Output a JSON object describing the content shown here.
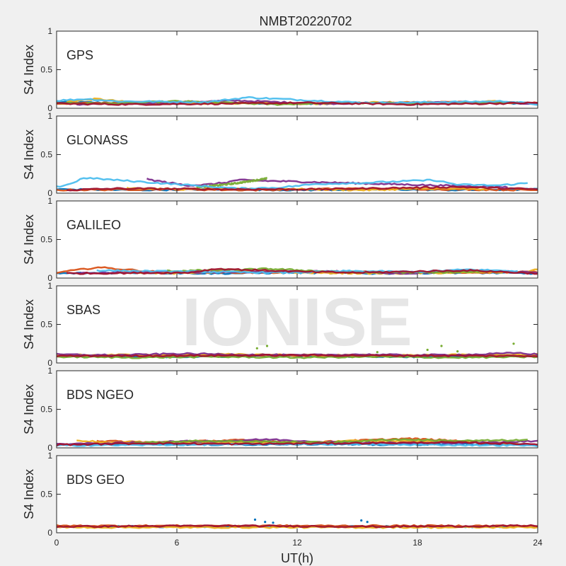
{
  "chart_data": {
    "type": "scatter",
    "title": "NMBT20220702",
    "xlabel": "UT(h)",
    "ylabel": "S4 Index",
    "xlim": [
      0,
      24
    ],
    "ylim": [
      0,
      1
    ],
    "x_ticks": [
      "0",
      "6",
      "12",
      "18",
      "24"
    ],
    "y_ticks": [
      "0",
      "0.5",
      "1"
    ],
    "grid": false,
    "watermark": "IONISE",
    "series_colors": [
      "#0072BD",
      "#D95319",
      "#EDB120",
      "#7E2F8E",
      "#77AC30",
      "#4DBEEE",
      "#A2142F"
    ],
    "panels": [
      {
        "name": "GPS",
        "tracks": [
          {
            "c": 0,
            "x": [
              0.0,
              3.0,
              6.0,
              9.0,
              12.0,
              15.0,
              18.0,
              21.0,
              24.0
            ],
            "y": [
              0.08,
              0.07,
              0.06,
              0.07,
              0.06,
              0.07,
              0.06,
              0.07,
              0.06
            ]
          },
          {
            "c": 1,
            "x": [
              0.0,
              4.0,
              8.0,
              12.0,
              16.0,
              20.0,
              24.0
            ],
            "y": [
              0.06,
              0.08,
              0.07,
              0.06,
              0.07,
              0.08,
              0.07
            ]
          },
          {
            "c": 2,
            "x": [
              0.5,
              2.0,
              3.5,
              7.0,
              10.0,
              13.0,
              16.5,
              19.0,
              22.0
            ],
            "y": [
              0.09,
              0.12,
              0.08,
              0.06,
              0.07,
              0.06,
              0.08,
              0.07,
              0.09
            ]
          },
          {
            "c": 3,
            "x": [
              1.0,
              5.0,
              9.0,
              13.0,
              17.0,
              21.0,
              24.0
            ],
            "y": [
              0.05,
              0.07,
              0.1,
              0.06,
              0.07,
              0.08,
              0.06
            ]
          },
          {
            "c": 4,
            "x": [
              0.0,
              2.5,
              6.0,
              11.0,
              14.0,
              18.5,
              23.0
            ],
            "y": [
              0.07,
              0.06,
              0.09,
              0.05,
              0.07,
              0.06,
              0.08
            ]
          },
          {
            "c": 5,
            "x": [
              0.0,
              1.5,
              3.0,
              7.5,
              9.5,
              14.5,
              16.0,
              22.5,
              24.0
            ],
            "y": [
              0.1,
              0.12,
              0.09,
              0.08,
              0.14,
              0.08,
              0.07,
              0.09,
              0.05
            ]
          },
          {
            "c": 6,
            "x": [
              0.0,
              3.5,
              8.5,
              12.5,
              17.5,
              21.5,
              24.0
            ],
            "y": [
              0.06,
              0.05,
              0.06,
              0.07,
              0.05,
              0.06,
              0.07
            ]
          }
        ]
      },
      {
        "name": "GLONASS",
        "tracks": [
          {
            "c": 0,
            "x": [
              0.0,
              4.0,
              8.0,
              12.0,
              16.0,
              20.0,
              24.0
            ],
            "y": [
              0.05,
              0.04,
              0.05,
              0.04,
              0.05,
              0.04,
              0.05
            ]
          },
          {
            "c": 1,
            "x": [
              0.0,
              5.0,
              10.0,
              14.5,
              19.5,
              24.0
            ],
            "y": [
              0.04,
              0.05,
              0.04,
              0.06,
              0.05,
              0.04
            ]
          },
          {
            "c": 2,
            "x": [
              3.5,
              6.0,
              9.5,
              12.5,
              15.5,
              18.5,
              21.5
            ],
            "y": [
              0.07,
              0.05,
              0.06,
              0.05,
              0.04,
              0.06,
              0.05
            ]
          },
          {
            "c": 3,
            "x": [
              4.5,
              5.5,
              6.5,
              7.5,
              8.5,
              9.0,
              20.5,
              22.5
            ],
            "y": [
              0.18,
              0.14,
              0.1,
              0.11,
              0.14,
              0.17,
              0.09,
              0.08
            ]
          },
          {
            "c": 4,
            "x": [
              7.0,
              8.0,
              9.0,
              10.0,
              10.5
            ],
            "y": [
              0.08,
              0.1,
              0.13,
              0.17,
              0.19
            ]
          },
          {
            "c": 5,
            "x": [
              0.0,
              0.5,
              1.0,
              1.3,
              9.0,
              11.0,
              13.0,
              15.0,
              18.8,
              20.0,
              22.0,
              23.5
            ],
            "y": [
              0.08,
              0.11,
              0.15,
              0.2,
              0.06,
              0.07,
              0.12,
              0.13,
              0.17,
              0.11,
              0.1,
              0.13
            ]
          },
          {
            "c": 6,
            "x": [
              0.5,
              3.0,
              9.5,
              13.0,
              20.0,
              24.0
            ],
            "y": [
              0.04,
              0.06,
              0.05,
              0.05,
              0.08,
              0.05
            ]
          }
        ]
      },
      {
        "name": "GALILEO",
        "tracks": [
          {
            "c": 0,
            "x": [
              0.0,
              4.0,
              8.0,
              12.0,
              16.0,
              20.0,
              24.0
            ],
            "y": [
              0.06,
              0.07,
              0.06,
              0.07,
              0.06,
              0.07,
              0.06
            ]
          },
          {
            "c": 1,
            "x": [
              0.0,
              1.5,
              2.0,
              5.0,
              10.0,
              15.0,
              20.0,
              24.0
            ],
            "y": [
              0.07,
              0.12,
              0.14,
              0.08,
              0.07,
              0.08,
              0.07,
              0.08
            ]
          },
          {
            "c": 2,
            "x": [
              3.0,
              6.0,
              9.0,
              12.0,
              16.5,
              23.5,
              24.0
            ],
            "y": [
              0.08,
              0.06,
              0.09,
              0.07,
              0.06,
              0.08,
              0.12
            ]
          },
          {
            "c": 3,
            "x": [
              1.0,
              4.5,
              8.5,
              13.5,
              17.5,
              21.0,
              24.0
            ],
            "y": [
              0.06,
              0.08,
              0.07,
              0.09,
              0.06,
              0.1,
              0.07
            ]
          },
          {
            "c": 4,
            "x": [
              5.5,
              7.5,
              9.5,
              10.5,
              14.0,
              19.0,
              22.0
            ],
            "y": [
              0.09,
              0.1,
              0.11,
              0.12,
              0.08,
              0.07,
              0.09
            ]
          },
          {
            "c": 5,
            "x": [
              2.0,
              4.0,
              11.5,
              14.5,
              18.0,
              20.5,
              23.0
            ],
            "y": [
              0.1,
              0.09,
              0.07,
              0.09,
              0.08,
              0.11,
              0.09
            ]
          },
          {
            "c": 6,
            "x": [
              0.5,
              6.5,
              8.0,
              12.5,
              15.0,
              20.5,
              24.0
            ],
            "y": [
              0.06,
              0.07,
              0.12,
              0.08,
              0.07,
              0.1,
              0.06
            ]
          }
        ]
      },
      {
        "name": "SBAS",
        "tracks": [
          {
            "c": 0,
            "x": [
              0.0,
              6.0,
              12.0,
              18.0,
              24.0
            ],
            "y": [
              0.09,
              0.08,
              0.09,
              0.08,
              0.09
            ]
          },
          {
            "c": 1,
            "x": [
              0.0,
              5.0,
              10.0,
              15.0,
              20.0,
              24.0
            ],
            "y": [
              0.1,
              0.09,
              0.1,
              0.09,
              0.1,
              0.09
            ]
          },
          {
            "c": 2,
            "x": [
              0.0,
              8.0,
              16.0,
              24.0
            ],
            "y": [
              0.1,
              0.11,
              0.1,
              0.11
            ]
          },
          {
            "c": 3,
            "x": [
              0.0,
              3.0,
              6.0,
              9.0,
              12.0,
              15.0,
              18.0,
              21.0,
              23.0,
              24.0
            ],
            "y": [
              0.11,
              0.1,
              0.12,
              0.11,
              0.1,
              0.11,
              0.1,
              0.11,
              0.13,
              0.11
            ]
          },
          {
            "c": 4,
            "x": [
              0.0,
              4.0,
              8.0,
              12.0,
              16.0,
              20.0,
              24.0
            ],
            "y": [
              0.08,
              0.07,
              0.08,
              0.07,
              0.08,
              0.07,
              0.08
            ]
          },
          {
            "c": 6,
            "x": [
              0.0,
              12.0,
              24.0
            ],
            "y": [
              0.09,
              0.1,
              0.09
            ]
          }
        ],
        "spikes": [
          {
            "c": 4,
            "x": [
              10.0,
              10.5,
              18.5,
              19.2,
              20.0,
              22.8,
              16.0
            ],
            "y": [
              0.19,
              0.22,
              0.17,
              0.22,
              0.15,
              0.25,
              0.14
            ]
          }
        ]
      },
      {
        "name": "BDS NGEO",
        "tracks": [
          {
            "c": 0,
            "x": [
              0.0,
              4.0,
              8.0,
              12.0,
              16.0,
              20.0,
              24.0
            ],
            "y": [
              0.04,
              0.05,
              0.04,
              0.05,
              0.04,
              0.05,
              0.04
            ]
          },
          {
            "c": 1,
            "x": [
              2.0,
              5.0,
              9.0,
              12.5,
              17.5,
              21.0
            ],
            "y": [
              0.09,
              0.07,
              0.1,
              0.07,
              0.12,
              0.08
            ]
          },
          {
            "c": 2,
            "x": [
              1.0,
              2.5,
              6.0,
              11.0,
              15.0,
              19.0,
              23.0
            ],
            "y": [
              0.1,
              0.07,
              0.08,
              0.06,
              0.09,
              0.08,
              0.06
            ]
          },
          {
            "c": 3,
            "x": [
              0.0,
              3.0,
              5.5,
              8.5,
              10.5,
              14.0,
              18.0,
              22.0,
              24.0
            ],
            "y": [
              0.05,
              0.06,
              0.08,
              0.09,
              0.11,
              0.07,
              0.06,
              0.07,
              0.09
            ]
          },
          {
            "c": 4,
            "x": [
              3.5,
              7.0,
              13.5,
              17.0,
              20.0,
              23.5
            ],
            "y": [
              0.06,
              0.09,
              0.07,
              0.11,
              0.09,
              0.1
            ]
          },
          {
            "c": 5,
            "x": [
              0.0,
              6.0,
              12.0,
              18.0,
              24.0
            ],
            "y": [
              0.03,
              0.04,
              0.05,
              0.04,
              0.03
            ]
          },
          {
            "c": 6,
            "x": [
              0.0,
              4.5,
              9.0,
              14.5,
              19.5,
              24.0
            ],
            "y": [
              0.04,
              0.06,
              0.05,
              0.06,
              0.07,
              0.05
            ]
          }
        ]
      },
      {
        "name": "BDS GEO",
        "tracks": [
          {
            "c": 0,
            "x": [
              0.0,
              6.0,
              12.0,
              18.0,
              24.0
            ],
            "y": [
              0.08,
              0.08,
              0.08,
              0.08,
              0.08
            ]
          },
          {
            "c": 1,
            "x": [
              0.0,
              6.0,
              12.0,
              18.0,
              24.0
            ],
            "y": [
              0.09,
              0.09,
              0.09,
              0.09,
              0.09
            ]
          },
          {
            "c": 2,
            "x": [
              0.0,
              6.0,
              12.0,
              18.0,
              24.0
            ],
            "y": [
              0.07,
              0.07,
              0.07,
              0.07,
              0.07
            ]
          },
          {
            "c": 6,
            "x": [
              0.0,
              8.0,
              16.0,
              24.0
            ],
            "y": [
              0.08,
              0.09,
              0.08,
              0.09
            ]
          }
        ],
        "spikes": [
          {
            "c": 0,
            "x": [
              9.9,
              10.4,
              10.8,
              15.2,
              15.5
            ],
            "y": [
              0.17,
              0.14,
              0.13,
              0.16,
              0.14
            ]
          }
        ]
      }
    ]
  }
}
